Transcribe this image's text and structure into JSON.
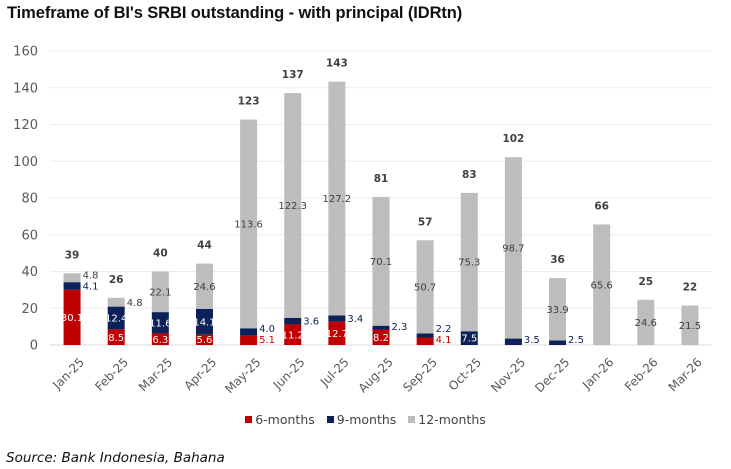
{
  "title": "Timeframe of BI's SRBI outstanding - with principal (IDRtn)",
  "source": "Source: Bank Indonesia, Bahana",
  "chart_data": {
    "type": "bar",
    "stacked": true,
    "title": "Timeframe of BI's SRBI outstanding - with principal (IDRtn)",
    "xlabel": "",
    "ylabel": "",
    "ylim": [
      0,
      160
    ],
    "yticks": [
      0,
      20,
      40,
      60,
      80,
      100,
      120,
      140,
      160
    ],
    "grid": true,
    "legend_position": "bottom",
    "categories": [
      "Jan-25",
      "Feb-25",
      "Mar-25",
      "Apr-25",
      "May-25",
      "Jun-25",
      "Jul-25",
      "Aug-25",
      "Sep-25",
      "Oct-25",
      "Nov-25",
      "Dec-25",
      "Jan-26",
      "Feb-26",
      "Mar-26"
    ],
    "series": [
      {
        "name": "6-months",
        "color": "#c00000",
        "label_color": "#ffffff",
        "values": [
          30.1,
          8.5,
          6.3,
          5.6,
          5.1,
          11.2,
          12.7,
          8.2,
          4.1,
          0,
          0,
          0,
          0,
          0,
          0
        ]
      },
      {
        "name": "9-months",
        "color": "#0c2157",
        "label_color": "#ffffff",
        "values": [
          4.1,
          12.4,
          11.6,
          14.1,
          4.0,
          3.6,
          3.4,
          2.3,
          2.2,
          7.5,
          3.5,
          2.5,
          0,
          0,
          0
        ]
      },
      {
        "name": "12-months",
        "color": "#bdbdbd",
        "label_color": "#404040",
        "values": [
          4.8,
          4.8,
          22.1,
          24.6,
          113.6,
          122.3,
          127.2,
          70.1,
          50.7,
          75.3,
          98.7,
          33.9,
          65.6,
          24.6,
          21.5
        ]
      }
    ],
    "totals": [
      39,
      26,
      40,
      44,
      123,
      137,
      143,
      81,
      57,
      83,
      102,
      36,
      66,
      25,
      22
    ]
  }
}
